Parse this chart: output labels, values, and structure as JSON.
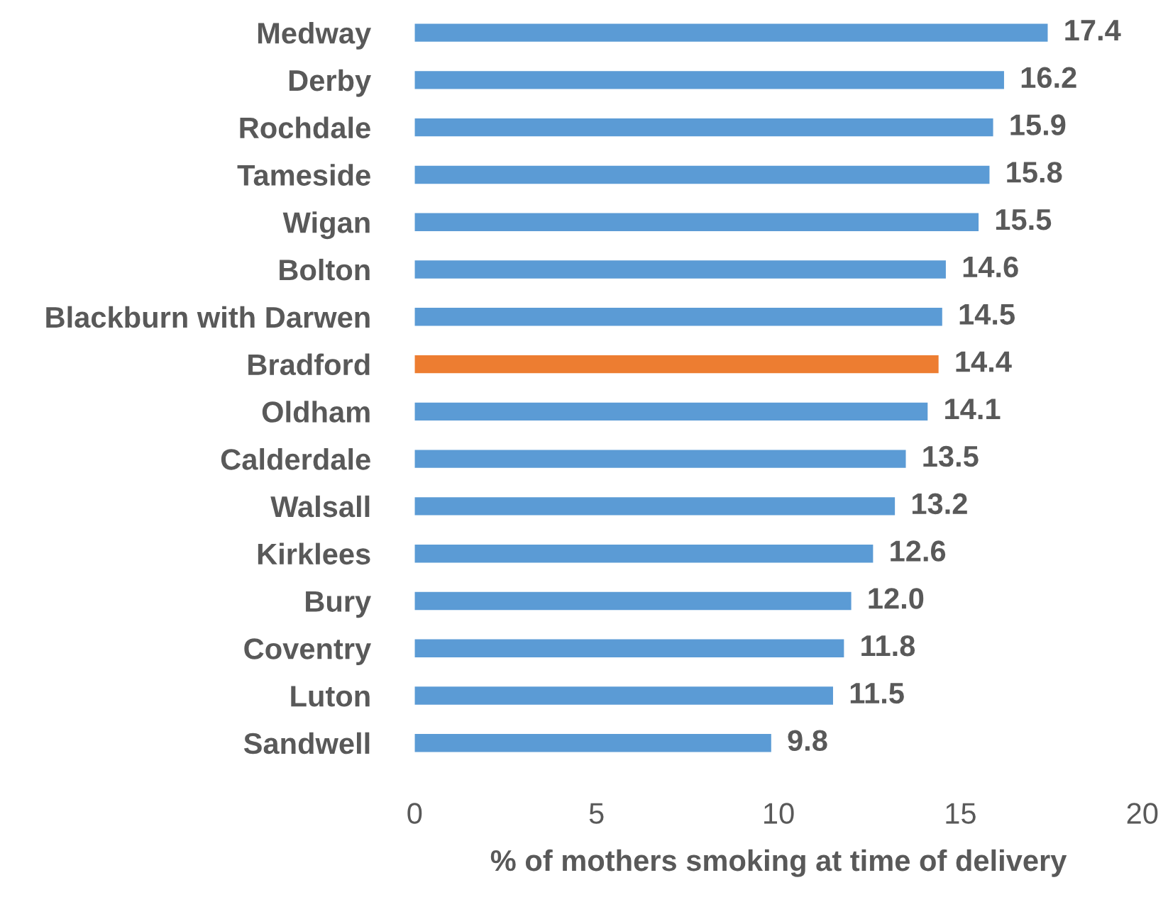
{
  "chart_data": {
    "type": "bar",
    "orientation": "horizontal",
    "xlabel": "% of mothers smoking at time of delivery",
    "categories": [
      "Medway",
      "Derby",
      "Rochdale",
      "Tameside",
      "Wigan",
      "Bolton",
      "Blackburn with Darwen",
      "Bradford",
      "Oldham",
      "Calderdale",
      "Walsall",
      "Kirklees",
      "Bury",
      "Coventry",
      "Luton",
      "Sandwell"
    ],
    "values": [
      17.4,
      16.2,
      15.9,
      15.8,
      15.5,
      14.6,
      14.5,
      14.4,
      14.1,
      13.5,
      13.2,
      12.6,
      12.0,
      11.8,
      11.5,
      9.8
    ],
    "value_labels": [
      "17.4",
      "16.2",
      "15.9",
      "15.8",
      "15.5",
      "14.6",
      "14.5",
      "14.4",
      "14.1",
      "13.5",
      "13.2",
      "12.6",
      "12.0",
      "11.8",
      "11.5",
      "9.8"
    ],
    "colors": [
      "#5b9bd5",
      "#5b9bd5",
      "#5b9bd5",
      "#5b9bd5",
      "#5b9bd5",
      "#5b9bd5",
      "#5b9bd5",
      "#ed7d31",
      "#5b9bd5",
      "#5b9bd5",
      "#5b9bd5",
      "#5b9bd5",
      "#5b9bd5",
      "#5b9bd5",
      "#5b9bd5",
      "#5b9bd5"
    ],
    "xlim": [
      0,
      20
    ],
    "xticks": [
      0,
      5,
      10,
      15,
      20
    ],
    "grid": false
  }
}
